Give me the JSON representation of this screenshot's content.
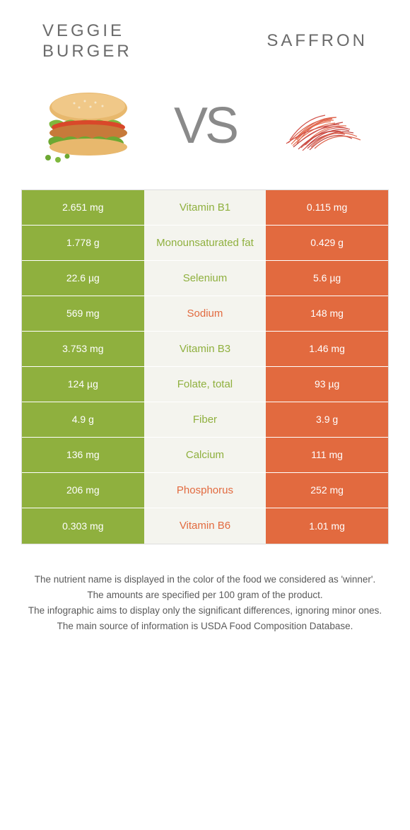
{
  "colors": {
    "green": "#8fb03e",
    "orange": "#e26a3f",
    "mid_bg": "#f4f4ee",
    "text_gray": "#6b6b6b"
  },
  "header": {
    "left_title_line1": "Veggie",
    "left_title_line2": "burger",
    "right_title": "Saffron",
    "vs": "VS"
  },
  "table": {
    "rows": [
      {
        "left": "2.651 mg",
        "mid": "Vitamin B1",
        "right": "0.115 mg",
        "winner": "left"
      },
      {
        "left": "1.778 g",
        "mid": "Monounsaturated fat",
        "right": "0.429 g",
        "winner": "left"
      },
      {
        "left": "22.6 µg",
        "mid": "Selenium",
        "right": "5.6 µg",
        "winner": "left"
      },
      {
        "left": "569 mg",
        "mid": "Sodium",
        "right": "148 mg",
        "winner": "right"
      },
      {
        "left": "3.753 mg",
        "mid": "Vitamin B3",
        "right": "1.46 mg",
        "winner": "left"
      },
      {
        "left": "124 µg",
        "mid": "Folate, total",
        "right": "93 µg",
        "winner": "left"
      },
      {
        "left": "4.9 g",
        "mid": "Fiber",
        "right": "3.9 g",
        "winner": "left"
      },
      {
        "left": "136 mg",
        "mid": "Calcium",
        "right": "111 mg",
        "winner": "left"
      },
      {
        "left": "206 mg",
        "mid": "Phosphorus",
        "right": "252 mg",
        "winner": "right"
      },
      {
        "left": "0.303 mg",
        "mid": "Vitamin B6",
        "right": "1.01 mg",
        "winner": "right"
      }
    ]
  },
  "footer": {
    "line1": "The nutrient name is displayed in the color of the food we considered as 'winner'.",
    "line2": "The amounts are specified per 100 gram of the product.",
    "line3": "The infographic aims to display only the significant differences, ignoring minor ones.",
    "line4": "The main source of information is USDA Food Composition Database."
  }
}
